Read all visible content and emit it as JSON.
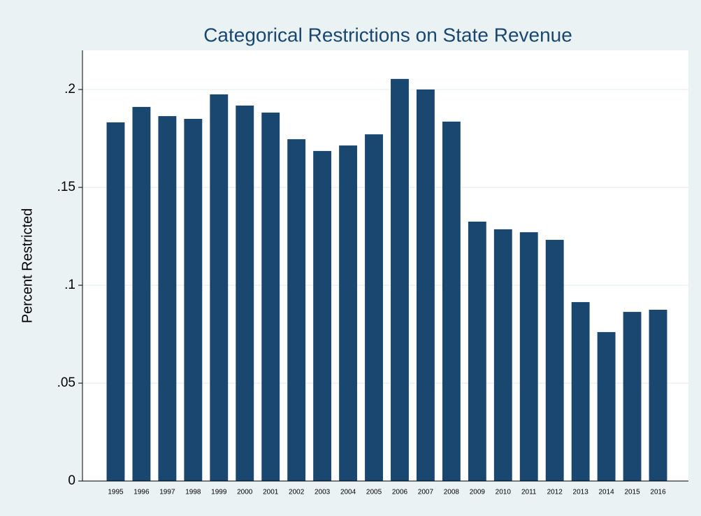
{
  "chart_data": {
    "type": "bar",
    "title": "Categorical Restrictions on State Revenue",
    "y_label": "Percent Restricted",
    "categories": [
      "1995",
      "1996",
      "1997",
      "1998",
      "1999",
      "2000",
      "2001",
      "2002",
      "2003",
      "2004",
      "2005",
      "2006",
      "2007",
      "2008",
      "2009",
      "2010",
      "2011",
      "2012",
      "2013",
      "2014",
      "2015",
      "2016"
    ],
    "values": [
      0.1832,
      0.1911,
      0.1864,
      0.185,
      0.1975,
      0.1918,
      0.1882,
      0.1746,
      0.1686,
      0.1714,
      0.1771,
      0.2054,
      0.2,
      0.1836,
      0.1325,
      0.1286,
      0.1271,
      0.1232,
      0.0914,
      0.0761,
      0.0864,
      0.0875
    ],
    "color": "#1a476f",
    "ylim": [
      0,
      0.22
    ],
    "yticks": [
      0,
      {
        "value": 0.05,
        "label": ".05"
      },
      {
        "value": 0.1,
        "label": ".1"
      },
      {
        "value": 0.15,
        "label": ".15"
      },
      {
        "value": 0.2,
        "label": ".2"
      }
    ],
    "grid": true
  }
}
